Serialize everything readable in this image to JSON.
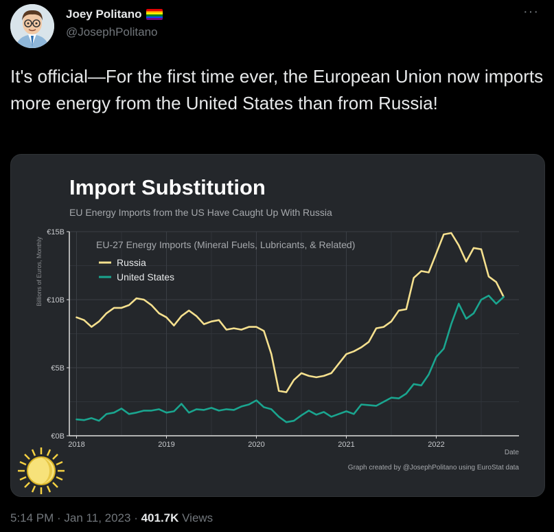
{
  "author": {
    "display_name": "Joey Politano",
    "handle": "@JosephPolitano"
  },
  "tweet": {
    "text": "It's official—For the first time ever, the European Union now imports more energy from the United States than from Russia!"
  },
  "footer": {
    "time": "5:14 PM",
    "sep1": " · ",
    "date": "Jan 11, 2023",
    "sep2": " · ",
    "views_count": "401.7K",
    "views_label": " Views"
  },
  "icons": {
    "more": "more-icon",
    "flag": "rainbow-flag-icon",
    "logo": "sun-logo-icon"
  },
  "chart_data": {
    "type": "line",
    "title": "Import Substitution",
    "subtitle": "EU Energy Imports from the US Have Caught Up With Russia",
    "ylabel": "Billions of Euros, Monthly",
    "xlabel": "Date",
    "legend_title": "EU-27 Energy Imports (Mineral Fuels, Lubricants, & Related)",
    "legend_position": "top-left",
    "grid": true,
    "ylim": [
      0,
      15
    ],
    "xlim": [
      2017.92,
      2022.92
    ],
    "y_ticks": [
      {
        "value": 0,
        "label": "€0B"
      },
      {
        "value": 5,
        "label": "€5B"
      },
      {
        "value": 10,
        "label": "€10B"
      },
      {
        "value": 15,
        "label": "€15B"
      }
    ],
    "x_ticks": [
      {
        "value": 2018,
        "label": "2018"
      },
      {
        "value": 2019,
        "label": "2019"
      },
      {
        "value": 2020,
        "label": "2020"
      },
      {
        "value": 2021,
        "label": "2021"
      },
      {
        "value": 2022,
        "label": "2022"
      }
    ],
    "source_note": "Graph created by @JosephPolitano using EuroStat data",
    "x_start": 2018.0,
    "x_step": 0.08333,
    "series": [
      {
        "name": "Russia",
        "color": "#f5e08e",
        "values": [
          8.7,
          8.5,
          8.0,
          8.4,
          9.0,
          9.4,
          9.4,
          9.6,
          10.1,
          10.0,
          9.6,
          9.0,
          8.7,
          8.1,
          8.8,
          9.2,
          8.8,
          8.2,
          8.4,
          8.5,
          7.8,
          7.9,
          7.8,
          8.0,
          8.0,
          7.7,
          6.0,
          3.3,
          3.2,
          4.1,
          4.6,
          4.4,
          4.3,
          4.4,
          4.6,
          5.3,
          6.0,
          6.2,
          6.5,
          6.9,
          7.9,
          8.0,
          8.4,
          9.2,
          9.3,
          11.6,
          12.1,
          12.0,
          13.4,
          14.8,
          14.9,
          14.0,
          12.8,
          13.8,
          13.7,
          11.7,
          11.3,
          10.2
        ]
      },
      {
        "name": "United States",
        "color": "#1aa58f",
        "values": [
          1.2,
          1.15,
          1.3,
          1.1,
          1.6,
          1.7,
          2.0,
          1.6,
          1.7,
          1.85,
          1.85,
          1.95,
          1.7,
          1.8,
          2.35,
          1.7,
          1.95,
          1.9,
          2.05,
          1.85,
          1.95,
          1.9,
          2.15,
          2.3,
          2.6,
          2.1,
          1.95,
          1.4,
          1.0,
          1.1,
          1.5,
          1.85,
          1.55,
          1.75,
          1.4,
          1.6,
          1.8,
          1.6,
          2.3,
          2.25,
          2.2,
          2.5,
          2.8,
          2.75,
          3.1,
          3.8,
          3.7,
          4.5,
          5.8,
          6.4,
          8.2,
          9.7,
          8.6,
          9.0,
          10.0,
          10.3,
          9.7,
          10.2
        ]
      }
    ]
  }
}
